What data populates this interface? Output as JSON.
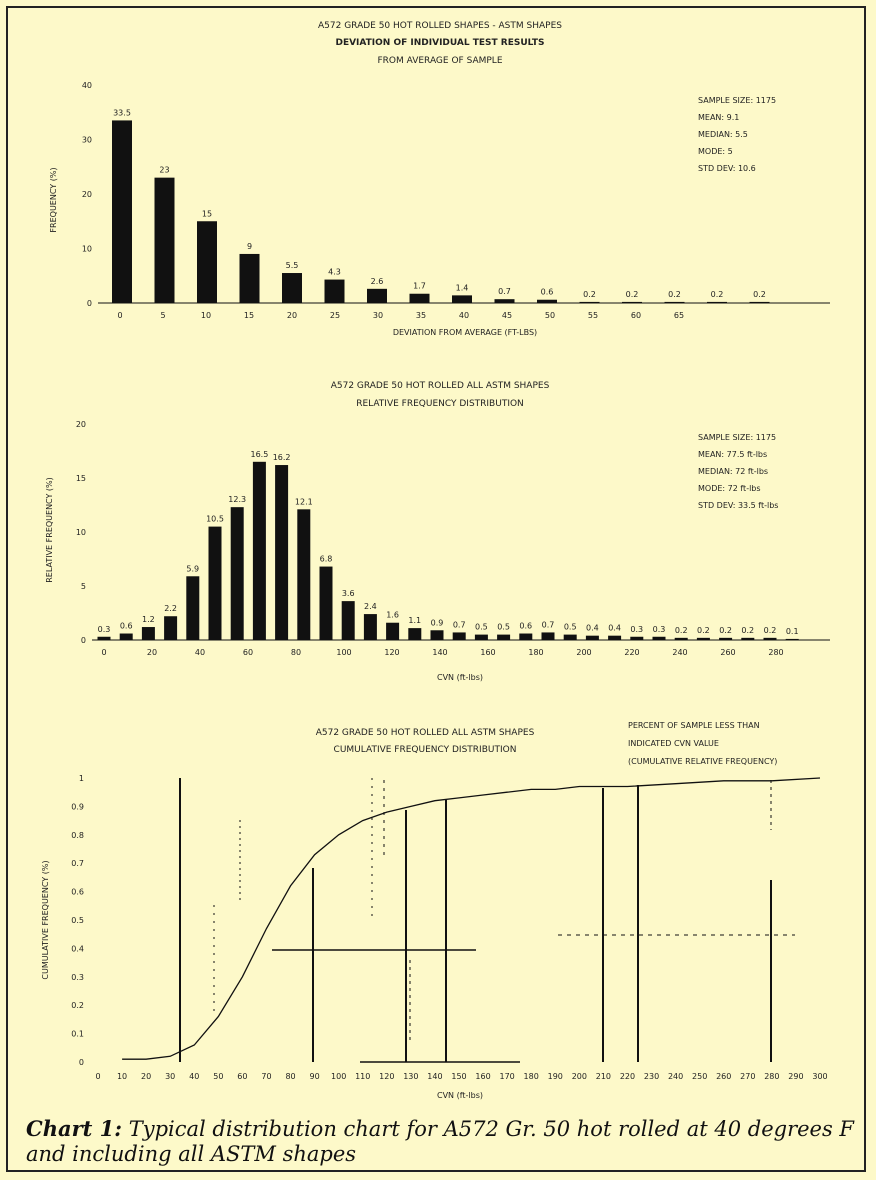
{
  "caption": {
    "label": "Chart 1:",
    "text": "Typical distribution chart for A572 Gr. 50 hot rolled at 40 degrees F and including all ASTM shapes"
  },
  "chart_data": [
    {
      "type": "bar",
      "title": [
        "A572 GRADE 50 HOT ROLLED SHAPES - ASTM SHAPES",
        "DEVIATION OF INDIVIDUAL TEST RESULTS",
        "FROM AVERAGE OF SAMPLE"
      ],
      "xlabel": "DEVIATION FROM AVERAGE (FT-LBS)",
      "ylabel": "FREQUENCY (%)",
      "ylim": [
        0,
        40
      ],
      "y_ticks": [
        "0",
        "10",
        "20",
        "30",
        "40"
      ],
      "x_tick_labels": [
        "0",
        "5",
        "10",
        "15",
        "20",
        "25",
        "30",
        "35",
        "40",
        "45",
        "50",
        "55",
        "60",
        "65"
      ],
      "values": [
        33.5,
        23,
        15,
        9,
        5.5,
        4.3,
        2.6,
        1.7,
        1.4,
        0.7,
        0.6,
        0.2,
        0.2,
        0.2,
        0.2,
        0.2
      ],
      "stats": [
        "SAMPLE SIZE: 1175",
        "MEAN: 9.1",
        "MEDIAN: 5.5",
        "MODE: 5",
        "STD DEV: 10.6"
      ]
    },
    {
      "type": "bar",
      "title": [
        "A572 GRADE 50 HOT ROLLED ALL ASTM SHAPES",
        "RELATIVE FREQUENCY DISTRIBUTION"
      ],
      "xlabel": "CVN (ft-lbs)",
      "ylabel": "RELATIVE FREQUENCY (%)",
      "ylim": [
        0,
        20
      ],
      "y_ticks": [
        "0",
        "5",
        "10",
        "15",
        "20"
      ],
      "x_tick_labels": [
        "0",
        "20",
        "40",
        "60",
        "80",
        "100",
        "120",
        "140",
        "160",
        "180",
        "200",
        "220",
        "240",
        "260",
        "280"
      ],
      "values": [
        0.3,
        0.6,
        1.2,
        2.2,
        5.9,
        10.5,
        12.3,
        16.5,
        16.2,
        12.1,
        6.8,
        3.6,
        2.4,
        1.6,
        1.1,
        0.9,
        0.7,
        0.5,
        0.5,
        0.6,
        0.7,
        0.5,
        0.4,
        0.4,
        0.3,
        0.3,
        0.2,
        0.2,
        0.2,
        0.2,
        0.2,
        0.1
      ],
      "stats": [
        "SAMPLE SIZE: 1175",
        "MEAN: 77.5 ft-lbs",
        "MEDIAN: 72 ft-lbs",
        "MODE: 72 ft-lbs",
        "STD DEV: 33.5 ft-lbs"
      ]
    },
    {
      "type": "line",
      "title": [
        "A572 GRADE 50 HOT ROLLED ALL ASTM SHAPES",
        "CUMULATIVE FREQUENCY DISTRIBUTION"
      ],
      "notes": [
        "PERCENT OF SAMPLE LESS THAN",
        "INDICATED CVN VALUE",
        "(CUMULATIVE RELATIVE FREQUENCY)"
      ],
      "xlabel": "CVN (ft-lbs)",
      "ylabel": "CUMULATIVE FREQUENCY (%)",
      "xlim": [
        0,
        300
      ],
      "ylim": [
        0,
        1
      ],
      "y_ticks": [
        "0",
        "0.1",
        "0.2",
        "0.3",
        "0.4",
        "0.5",
        "0.6",
        "0.7",
        "0.8",
        "0.9",
        "1"
      ],
      "x_ticks": [
        "0",
        "10",
        "20",
        "30",
        "40",
        "50",
        "60",
        "70",
        "80",
        "90",
        "100",
        "110",
        "120",
        "130",
        "140",
        "150",
        "160",
        "170",
        "180",
        "190",
        "200",
        "210",
        "220",
        "230",
        "240",
        "250",
        "260",
        "270",
        "280",
        "290",
        "300"
      ],
      "x": [
        10,
        20,
        30,
        40,
        50,
        60,
        70,
        80,
        90,
        100,
        110,
        120,
        130,
        140,
        150,
        160,
        170,
        180,
        190,
        200,
        220,
        240,
        260,
        280,
        300
      ],
      "y": [
        0.01,
        0.01,
        0.02,
        0.06,
        0.16,
        0.3,
        0.47,
        0.62,
        0.73,
        0.8,
        0.85,
        0.88,
        0.9,
        0.92,
        0.93,
        0.94,
        0.95,
        0.96,
        0.96,
        0.97,
        0.97,
        0.98,
        0.99,
        0.99,
        1.0
      ]
    }
  ]
}
